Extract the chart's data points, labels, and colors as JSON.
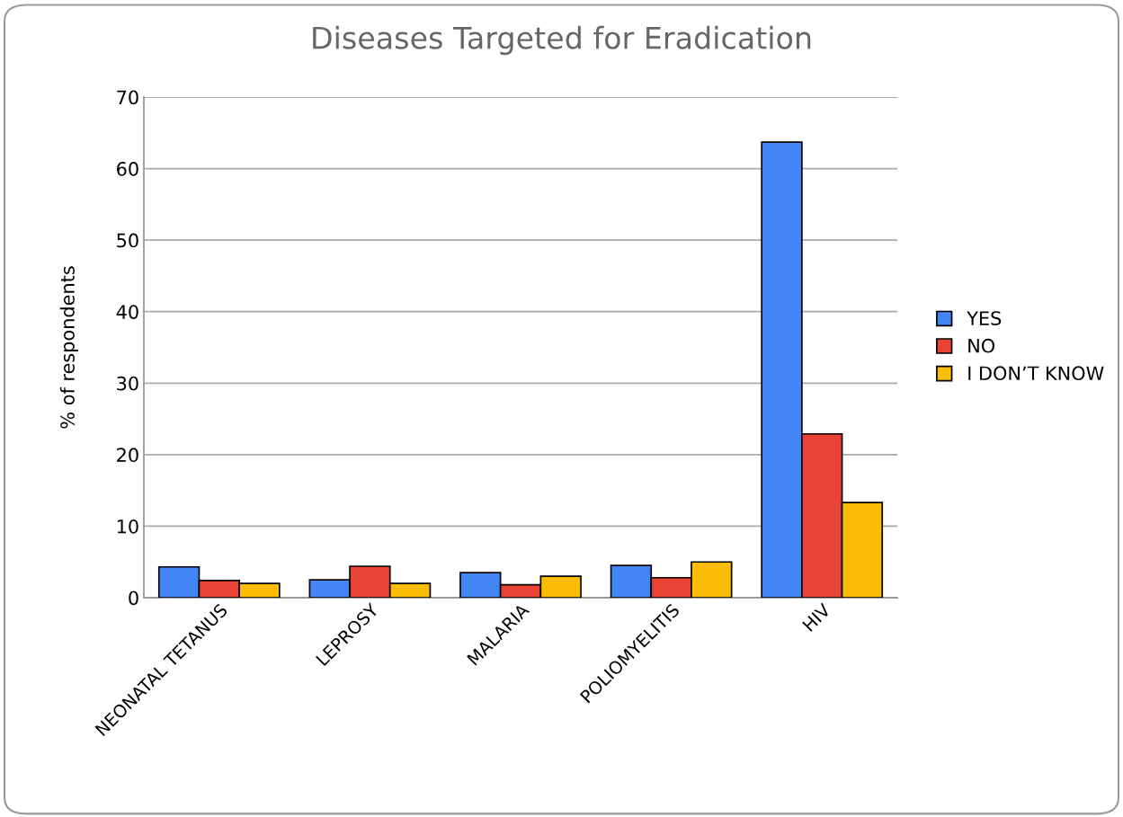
{
  "chart_data": {
    "type": "bar",
    "title": "Diseases Targeted for Eradication",
    "ylabel": "% of respondents",
    "categories": [
      "NEONATAL TETANUS",
      "LEPROSY",
      "MALARIA",
      "POLIOMYELITIS",
      "HIV"
    ],
    "series": [
      {
        "name": "YES",
        "color": "#4285f4",
        "values": [
          4.3,
          2.5,
          3.5,
          4.5,
          63.7
        ]
      },
      {
        "name": "NO",
        "color": "#ea4335",
        "values": [
          2.4,
          4.4,
          1.8,
          2.8,
          22.9
        ]
      },
      {
        "name": "I DON’T KNOW",
        "color": "#fbbc04",
        "values": [
          2.0,
          2.0,
          3.0,
          5.0,
          13.3
        ]
      }
    ],
    "ylim": [
      0,
      70
    ],
    "yticks": [
      0,
      10,
      20,
      30,
      40,
      50,
      60,
      70
    ],
    "grid": "y",
    "legend": "right"
  }
}
